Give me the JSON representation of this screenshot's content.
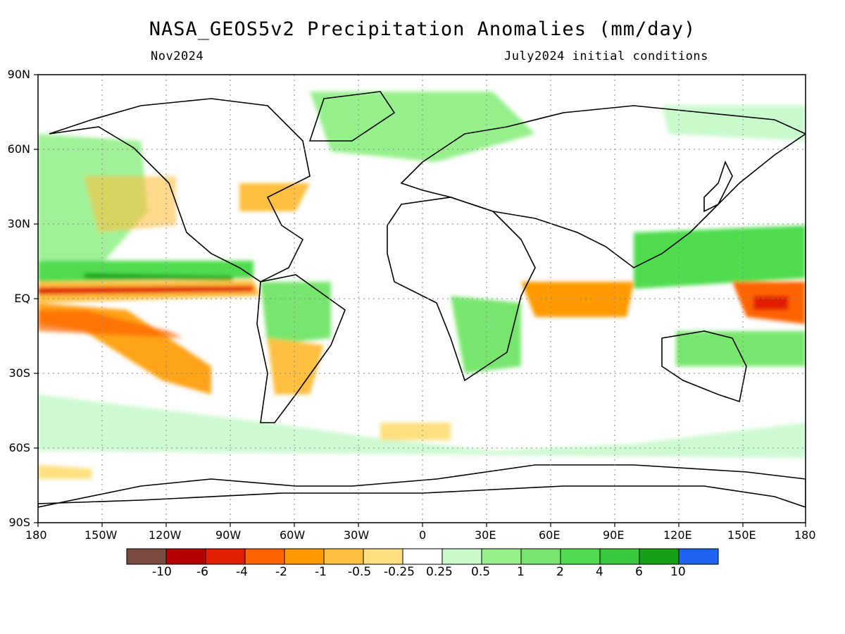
{
  "title": "NASA_GEOS5v2 Precipitation Anomalies (mm/day)",
  "subtitle_left": "Nov2024",
  "subtitle_right": "July2024 initial conditions",
  "map": {
    "lat_labels": [
      "90N",
      "60N",
      "30N",
      "EQ",
      "30S",
      "60S",
      "90S"
    ],
    "lon_labels": [
      "180",
      "150W",
      "120W",
      "90W",
      "60W",
      "30W",
      "0",
      "30E",
      "60E",
      "90E",
      "120E",
      "150E",
      "180"
    ],
    "lat_range": [
      -90,
      90
    ],
    "lon_range": [
      -180,
      180
    ],
    "grid": true
  },
  "colorbar": {
    "levels": [
      "-10",
      "-6",
      "-4",
      "-2",
      "-1",
      "-0.5",
      "-0.25",
      "0.25",
      "0.5",
      "1",
      "2",
      "4",
      "6",
      "10"
    ],
    "colors": [
      "#7a4a3f",
      "#b30000",
      "#e01e00",
      "#ff6400",
      "#ff9a00",
      "#ffbf40",
      "#ffe080",
      "#ffffff",
      "#c8facc",
      "#96f08c",
      "#78e66e",
      "#50dc50",
      "#37c83c",
      "#15a015",
      "#1e64f0"
    ]
  }
}
